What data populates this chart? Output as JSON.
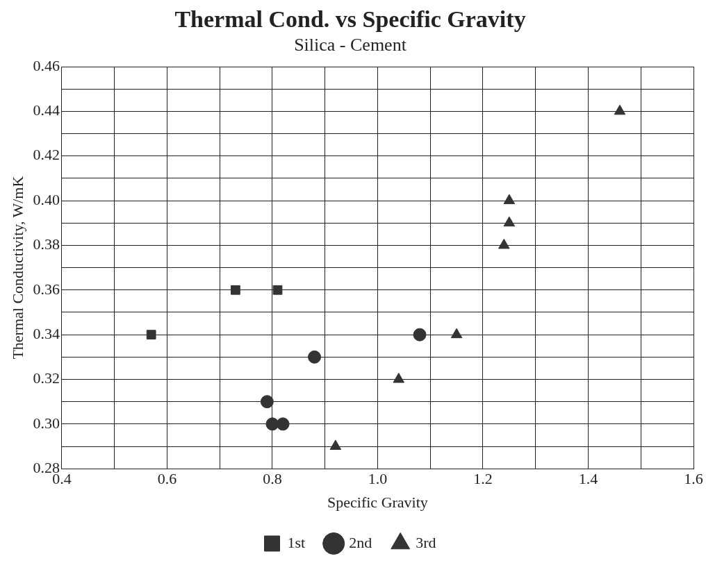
{
  "chart_data": {
    "type": "scatter",
    "title": "Thermal Cond. vs Specific Gravity",
    "subtitle": "Silica - Cement",
    "xlabel": "Specific Gravity",
    "ylabel": "Thermal Conductivity, W/mK",
    "series": [
      {
        "name": "1st",
        "color": "#333333",
        "marker": "square",
        "x": [
          0.57,
          0.73,
          0.81
        ],
        "values": [
          0.34,
          0.36,
          0.36
        ]
      },
      {
        "name": "2nd",
        "color": "#333333",
        "marker": "circle",
        "x": [
          0.79,
          0.8,
          0.82,
          0.88,
          1.08
        ],
        "values": [
          0.31,
          0.3,
          0.3,
          0.33,
          0.34
        ]
      },
      {
        "name": "3rd",
        "color": "#333333",
        "marker": "triangle",
        "x": [
          0.92,
          1.04,
          1.15,
          1.24,
          1.25,
          1.25,
          1.46
        ],
        "values": [
          0.29,
          0.32,
          0.34,
          0.38,
          0.39,
          0.4,
          0.44
        ]
      }
    ],
    "xlim": [
      0.4,
      1.6
    ],
    "xticks": [
      0.4,
      {
        "value": 0.5,
        "label": null
      },
      0.6,
      {
        "value": 0.7,
        "label": null
      },
      0.8,
      {
        "value": 0.9,
        "label": null
      },
      {
        "value": 1,
        "label": "1.0"
      },
      {
        "value": 1.1,
        "label": null
      },
      1.2,
      {
        "value": 1.3,
        "label": null
      },
      1.4,
      {
        "value": 1.5,
        "label": null
      },
      1.6
    ],
    "ylim": [
      0.28,
      0.46
    ],
    "yticks": [
      0.28,
      {
        "value": 0.29,
        "label": null
      },
      {
        "value": 0.3,
        "label": "0.30"
      },
      {
        "value": 0.31,
        "label": null
      },
      0.32,
      {
        "value": 0.33,
        "label": null
      },
      0.34,
      {
        "value": 0.35,
        "label": null
      },
      0.36,
      {
        "value": 0.37,
        "label": null
      },
      0.38,
      {
        "value": 0.39,
        "label": null
      },
      {
        "value": 0.4,
        "label": "0.40"
      },
      {
        "value": 0.41,
        "label": null
      },
      0.42,
      {
        "value": 0.43,
        "label": null
      },
      0.44,
      {
        "value": 0.45,
        "label": null
      },
      0.46
    ],
    "grid": true,
    "legend": "bottom"
  }
}
